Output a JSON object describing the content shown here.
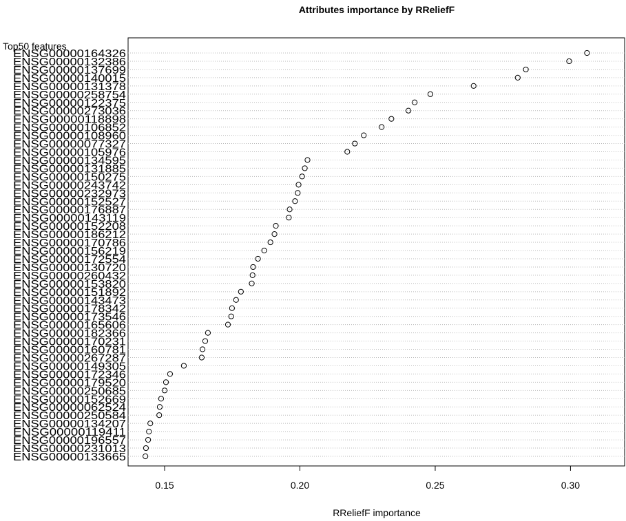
{
  "chart_data": {
    "type": "dot",
    "title": "Attributes importance by RReliefF",
    "x_label": "RReliefF importance",
    "y_label": "Top50 features",
    "categories": [
      "ENSG00000164326",
      "ENSG00000132386",
      "ENSG00000137699",
      "ENSG00000140015",
      "ENSG00000131378",
      "ENSG00000258754",
      "ENSG00000122375",
      "ENSG00000273036",
      "ENSG00000118898",
      "ENSG00000106852",
      "ENSG00000108960",
      "ENSG00000077327",
      "ENSG00000105976",
      "ENSG00000134595",
      "ENSG00000131885",
      "ENSG00000150275",
      "ENSG00000243742",
      "ENSG00000232973",
      "ENSG00000152527",
      "ENSG00000176887",
      "ENSG00000143119",
      "ENSG00000152208",
      "ENSG00000186212",
      "ENSG00000170786",
      "ENSG00000156219",
      "ENSG00000172554",
      "ENSG00000130720",
      "ENSG00000260432",
      "ENSG00000153820",
      "ENSG00000151892",
      "ENSG00000143473",
      "ENSG00000178342",
      "ENSG00000173546",
      "ENSG00000165606",
      "ENSG00000182366",
      "ENSG00000170231",
      "ENSG00000160781",
      "ENSG00000267287",
      "ENSG00000149305",
      "ENSG00000172346",
      "ENSG00000179520",
      "ENSG00000250685",
      "ENSG00000152669",
      "ENSG00000062524",
      "ENSG00000250584",
      "ENSG00000134207",
      "ENSG00000119411",
      "ENSG00000196557",
      "ENSG00000231013",
      "ENSG00000133665"
    ],
    "values": [
      0.3061,
      0.2995,
      0.2835,
      0.2805,
      0.2642,
      0.2482,
      0.2424,
      0.2401,
      0.2338,
      0.2302,
      0.2236,
      0.2203,
      0.2175,
      0.2028,
      0.2018,
      0.2008,
      0.1995,
      0.1992,
      0.1982,
      0.1962,
      0.1959,
      0.1911,
      0.1906,
      0.1891,
      0.1868,
      0.1845,
      0.1827,
      0.1825,
      0.1822,
      0.1782,
      0.1764,
      0.1749,
      0.1746,
      0.1734,
      0.166,
      0.165,
      0.164,
      0.1637,
      0.1571,
      0.152,
      0.1505,
      0.15,
      0.1487,
      0.1482,
      0.148,
      0.1447,
      0.1442,
      0.1439,
      0.1431,
      0.1429
    ],
    "xlim": [
      0.1365,
      0.32
    ],
    "xticks": [
      0.15,
      {
        "value": 0.2,
        "label": "0.20"
      },
      0.25,
      {
        "value": 0.3,
        "label": "0.30"
      }
    ],
    "color": "#000000",
    "grid": true
  }
}
